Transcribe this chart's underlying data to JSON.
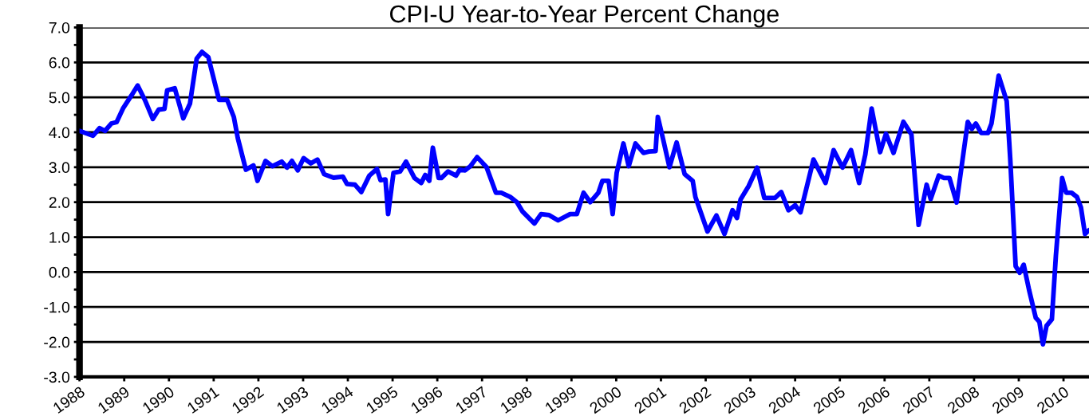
{
  "chart_data": {
    "type": "line",
    "title": "CPI-U Year-to-Year Percent Change",
    "xlim": [
      1988,
      2010.57
    ],
    "xticks": [
      1988,
      1989,
      1990,
      1991,
      1992,
      1993,
      1994,
      1995,
      1996,
      1997,
      1998,
      1999,
      2000,
      2001,
      2002,
      2003,
      2004,
      2005,
      2006,
      2007,
      2008,
      2009,
      2010
    ],
    "ylim": [
      -3,
      7
    ],
    "yticks": [
      {
        "value": -3,
        "label": "-3.0"
      },
      {
        "value": -2.5,
        "label": null
      },
      {
        "value": -2,
        "label": "-2.0"
      },
      {
        "value": -1.5,
        "label": null
      },
      {
        "value": -1,
        "label": "-1.0"
      },
      {
        "value": -0.5,
        "label": null
      },
      {
        "value": 0,
        "label": "0.0"
      },
      {
        "value": 0.5,
        "label": null
      },
      {
        "value": 1,
        "label": "1.0"
      },
      {
        "value": 1.5,
        "label": null
      },
      {
        "value": 2,
        "label": "2.0"
      },
      {
        "value": 2.5,
        "label": null
      },
      {
        "value": 3,
        "label": "3.0"
      },
      {
        "value": 3.5,
        "label": null
      },
      {
        "value": 4,
        "label": "4.0"
      },
      {
        "value": 4.5,
        "label": null
      },
      {
        "value": 5,
        "label": "5.0"
      },
      {
        "value": 5.5,
        "label": null
      },
      {
        "value": 6,
        "label": "6.0"
      },
      {
        "value": 6.5,
        "label": null
      },
      {
        "value": 7,
        "label": "7.0"
      }
    ],
    "grid": "y",
    "marker": "none",
    "line_style": "solid",
    "series": [
      {
        "color": "#0000ff",
        "x": [
          1988.0,
          1988.3,
          1988.45,
          1988.57,
          1988.71,
          1988.83,
          1988.98,
          1989.16,
          1989.3,
          1989.46,
          1989.64,
          1989.77,
          1989.9,
          1989.96,
          1990.13,
          1990.32,
          1990.47,
          1990.62,
          1990.74,
          1990.88,
          1991.12,
          1991.3,
          1991.45,
          1991.54,
          1991.72,
          1991.89,
          1991.98,
          1992.16,
          1992.31,
          1992.52,
          1992.64,
          1992.75,
          1992.88,
          1993.01,
          1993.17,
          1993.32,
          1993.47,
          1993.68,
          1993.89,
          1993.98,
          1994.16,
          1994.3,
          1994.48,
          1994.65,
          1994.73,
          1994.84,
          1994.9,
          1995.02,
          1995.17,
          1995.3,
          1995.49,
          1995.64,
          1995.73,
          1995.82,
          1995.9,
          1996.03,
          1996.09,
          1996.24,
          1996.42,
          1996.5,
          1996.62,
          1996.74,
          1996.89,
          1997.1,
          1997.31,
          1997.43,
          1997.63,
          1997.78,
          1997.9,
          1998.17,
          1998.32,
          1998.5,
          1998.7,
          1998.97,
          1999.12,
          1999.27,
          1999.42,
          1999.6,
          1999.69,
          1999.83,
          1999.92,
          2000.01,
          2000.16,
          2000.28,
          2000.43,
          2000.61,
          2000.73,
          2000.88,
          2000.93,
          2001.05,
          2001.19,
          2001.35,
          2001.53,
          2001.71,
          2001.77,
          2002.04,
          2002.24,
          2002.42,
          2002.6,
          2002.7,
          2002.78,
          2002.96,
          2003.15,
          2003.31,
          2003.55,
          2003.69,
          2003.85,
          2004.0,
          2004.12,
          2004.41,
          2004.68,
          2004.86,
          2005.06,
          2005.25,
          2005.43,
          2005.57,
          2005.71,
          2005.9,
          2006.03,
          2006.2,
          2006.42,
          2006.6,
          2006.76,
          2006.94,
          2007.03,
          2007.21,
          2007.33,
          2007.45,
          2007.61,
          2007.86,
          2007.95,
          2008.04,
          2008.16,
          2008.31,
          2008.39,
          2008.55,
          2008.73,
          2008.81,
          2008.93,
          2009.02,
          2009.11,
          2009.23,
          2009.38,
          2009.46,
          2009.54,
          2009.62,
          2009.74,
          2009.83,
          2009.97,
          2010.06,
          2010.18,
          2010.3,
          2010.39,
          2010.48,
          2010.57
        ],
        "values": [
          4.04,
          3.9,
          4.12,
          4.04,
          4.25,
          4.29,
          4.7,
          5.05,
          5.34,
          4.93,
          4.38,
          4.65,
          4.67,
          5.2,
          5.26,
          4.4,
          4.82,
          6.11,
          6.3,
          6.15,
          4.93,
          4.93,
          4.44,
          3.83,
          2.93,
          3.05,
          2.61,
          3.18,
          3.03,
          3.16,
          2.99,
          3.18,
          2.91,
          3.26,
          3.11,
          3.22,
          2.8,
          2.7,
          2.73,
          2.52,
          2.5,
          2.29,
          2.76,
          2.95,
          2.63,
          2.65,
          1.66,
          2.84,
          2.88,
          3.16,
          2.69,
          2.55,
          2.78,
          2.61,
          3.56,
          2.69,
          2.69,
          2.88,
          2.76,
          2.93,
          2.91,
          3.03,
          3.29,
          3.0,
          2.27,
          2.27,
          2.15,
          2.0,
          1.74,
          1.39,
          1.66,
          1.63,
          1.48,
          1.66,
          1.66,
          2.27,
          2.0,
          2.27,
          2.61,
          2.61,
          1.66,
          2.84,
          3.68,
          3.03,
          3.68,
          3.41,
          3.45,
          3.46,
          4.44,
          3.79,
          3.0,
          3.71,
          2.8,
          2.61,
          2.15,
          1.16,
          1.62,
          1.09,
          1.77,
          1.55,
          2.08,
          2.46,
          2.99,
          2.12,
          2.12,
          2.29,
          1.77,
          1.91,
          1.71,
          3.22,
          2.55,
          3.49,
          2.99,
          3.49,
          2.55,
          3.37,
          4.68,
          3.43,
          3.96,
          3.41,
          4.3,
          3.94,
          1.35,
          2.5,
          2.09,
          2.76,
          2.69,
          2.69,
          1.99,
          4.3,
          4.1,
          4.25,
          3.98,
          3.98,
          4.25,
          5.62,
          4.89,
          3.22,
          0.17,
          -0.02,
          0.21,
          -0.51,
          -1.31,
          -1.42,
          -2.07,
          -1.54,
          -1.35,
          0.48,
          2.69,
          2.27,
          2.27,
          2.15,
          1.85,
          1.09,
          1.2
        ]
      }
    ]
  }
}
